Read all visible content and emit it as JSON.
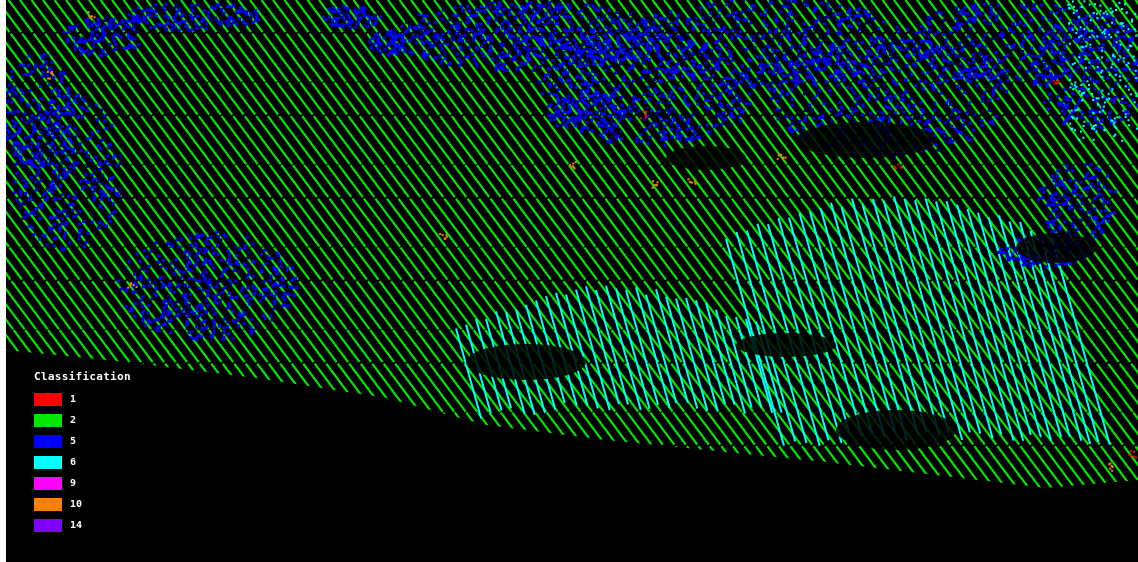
{
  "legend": {
    "title": "Classification",
    "items": [
      {
        "label": "1",
        "color": "#ff0000"
      },
      {
        "label": "2",
        "color": "#00e600"
      },
      {
        "label": "5",
        "color": "#0000ff"
      },
      {
        "label": "6",
        "color": "#00ffff"
      },
      {
        "label": "9",
        "color": "#ff00ff"
      },
      {
        "label": "10",
        "color": "#ff8000"
      },
      {
        "label": "14",
        "color": "#8000ff"
      }
    ]
  },
  "colors": {
    "background": "#000000",
    "ground": "#00e600",
    "vegetation": "#0000ff",
    "water": "#00ffff",
    "unclassified": "#ff0000",
    "overlap": "#ff8000"
  }
}
